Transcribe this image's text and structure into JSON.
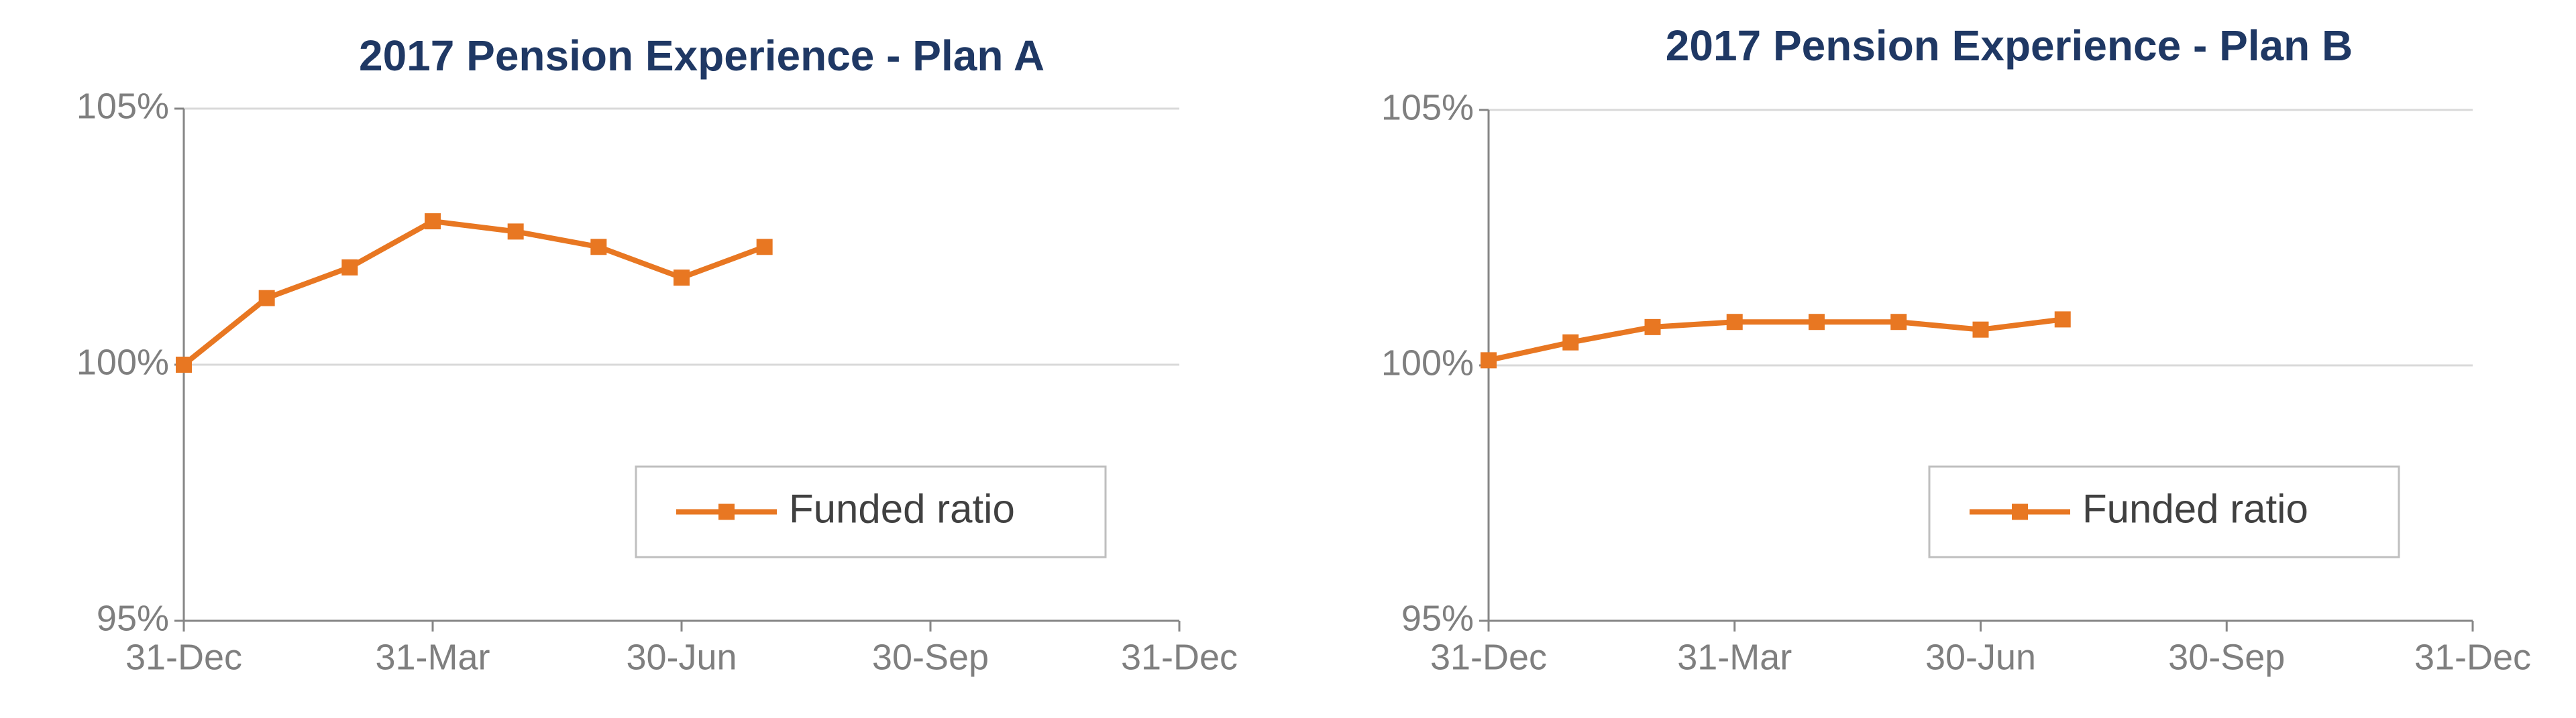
{
  "chart_data": [
    {
      "type": "line",
      "title": "2017 Pension Experience - Plan A",
      "categories": [
        "31-Dec",
        null,
        null,
        "31-Mar",
        null,
        null,
        "30-Jun",
        null,
        null,
        "30-Sep",
        null,
        null,
        "31-Dec"
      ],
      "series": [
        {
          "name": "Funded ratio",
          "color": "#e87722",
          "values": [
            100.0,
            101.3,
            101.9,
            102.8,
            102.6,
            102.3,
            101.7,
            102.3,
            null,
            null,
            null,
            null,
            null
          ]
        }
      ],
      "ylim": [
        95,
        105
      ],
      "yticks": [
        {
          "value": 95,
          "label": "95%"
        },
        {
          "value": 100,
          "label": "100%"
        },
        {
          "value": 105,
          "label": "105%"
        }
      ],
      "grid": true,
      "legend": "lower right"
    },
    {
      "type": "line",
      "title": "2017 Pension Experience - Plan B",
      "categories": [
        "31-Dec",
        null,
        null,
        "31-Mar",
        null,
        null,
        "30-Jun",
        null,
        null,
        "30-Sep",
        null,
        null,
        "31-Dec"
      ],
      "series": [
        {
          "name": "Funded ratio",
          "color": "#e87722",
          "values": [
            100.1,
            100.45,
            100.75,
            100.85,
            100.85,
            100.85,
            100.7,
            100.9,
            null,
            null,
            null,
            null,
            null
          ]
        }
      ],
      "ylim": [
        95,
        105
      ],
      "yticks": [
        {
          "value": 95,
          "label": "95%"
        },
        {
          "value": 100,
          "label": "100%"
        },
        {
          "value": 105,
          "label": "105%"
        }
      ],
      "grid": true,
      "legend": "lower right"
    }
  ]
}
